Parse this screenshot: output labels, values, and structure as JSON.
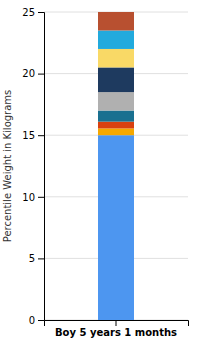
{
  "chart_data": {
    "type": "bar",
    "stacked": true,
    "grid": true,
    "ylabel": "Percentile Weight in Kilograms",
    "categories": [
      "Boy 5 years 1 months"
    ],
    "ylim": [
      0,
      25
    ],
    "yticks": [
      0,
      5,
      10,
      15,
      20,
      25
    ],
    "series": [
      {
        "color": "#4d96f0",
        "values": [
          15.0
        ]
      },
      {
        "color": "#f5a800",
        "values": [
          0.55
        ]
      },
      {
        "color": "#d94010",
        "values": [
          0.55
        ]
      },
      {
        "color": "#1a7090",
        "values": [
          0.9
        ]
      },
      {
        "color": "#b0b0b0",
        "values": [
          1.5
        ]
      },
      {
        "color": "#1e3a5f",
        "values": [
          2.0
        ]
      },
      {
        "color": "#f9d966",
        "values": [
          1.5
        ]
      },
      {
        "color": "#22aadd",
        "values": [
          1.5
        ]
      },
      {
        "color": "#b85030",
        "values": [
          1.5
        ]
      }
    ]
  }
}
